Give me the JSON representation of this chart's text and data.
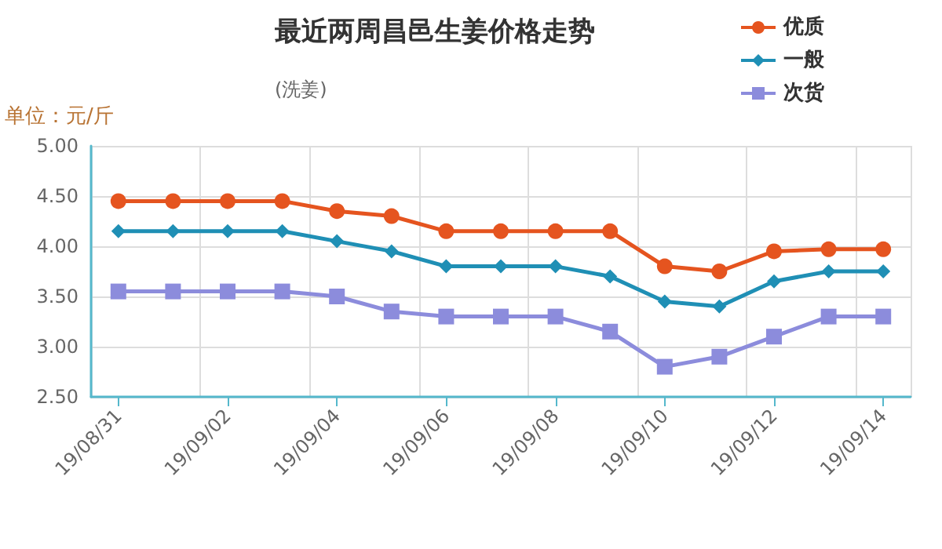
{
  "chart_data": {
    "type": "line",
    "title": "最近两周昌邑生姜价格走势",
    "subtitle": "(洗姜)",
    "ylabel": "单位：元/斤",
    "categories": [
      "19/08/31",
      null,
      "19/09/02",
      null,
      "19/09/04",
      null,
      "19/09/06",
      null,
      "19/09/08",
      null,
      "19/09/10",
      null,
      "19/09/12",
      null,
      "19/09/14"
    ],
    "series": [
      {
        "name": "优质",
        "color": "#e5541f",
        "marker": "circle",
        "values": [
          4.45,
          4.45,
          4.45,
          4.45,
          4.35,
          4.3,
          4.15,
          4.15,
          4.15,
          4.15,
          3.8,
          3.75,
          3.95,
          3.97,
          3.97
        ]
      },
      {
        "name": "一般",
        "color": "#1f8fb5",
        "marker": "diamond",
        "values": [
          4.15,
          4.15,
          4.15,
          4.15,
          4.05,
          3.95,
          3.8,
          3.8,
          3.8,
          3.7,
          3.45,
          3.4,
          3.65,
          3.75,
          3.75
        ]
      },
      {
        "name": "次货",
        "color": "#8c8cdc",
        "marker": "square",
        "values": [
          3.55,
          3.55,
          3.55,
          3.55,
          3.5,
          3.35,
          3.3,
          3.3,
          3.3,
          3.15,
          2.8,
          2.9,
          3.1,
          3.3,
          3.3
        ]
      }
    ],
    "ylim": [
      2.5,
      5
    ],
    "yticks": [
      {
        "value": 2.5,
        "label": "2.50"
      },
      {
        "value": 3,
        "label": "3.00"
      },
      {
        "value": 3.5,
        "label": "3.50"
      },
      {
        "value": 4,
        "label": "4.00"
      },
      {
        "value": 4.5,
        "label": "4.50"
      },
      {
        "value": 5,
        "label": "5.00"
      }
    ],
    "grid": true,
    "legend": "top right"
  }
}
